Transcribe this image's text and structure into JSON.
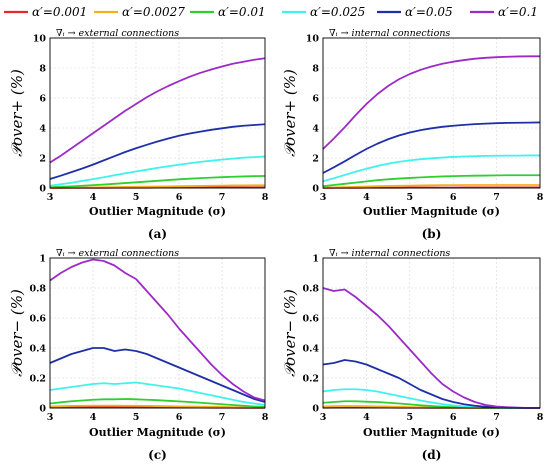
{
  "legend": [
    {
      "label": "α′=0.001",
      "color": "#e8262a"
    },
    {
      "label": "α′=0.0027",
      "color": "#f2b01e"
    },
    {
      "label": "α′=0.01",
      "color": "#2fcf2f"
    },
    {
      "label": "α′=0.025",
      "color": "#3ff2ee"
    },
    {
      "label": "α′=0.05",
      "color": "#1f2fa8"
    },
    {
      "label": "α′=0.1",
      "color": "#9b2bc6"
    }
  ],
  "chart_data": [
    {
      "type": "line",
      "panel_label": "(a)",
      "annotation": "∇ᵢ → external connections",
      "xlabel": "Outlier Magnitude (σ)",
      "ylabel": "𝒫over+ (%)",
      "xlim": [
        3,
        8
      ],
      "ylim": [
        0,
        10
      ],
      "xticks": [
        "3",
        "4",
        "5",
        "6",
        "7",
        "8"
      ],
      "yticks": [
        "0",
        "2",
        "4",
        "6",
        "8",
        "10"
      ],
      "grid": true,
      "x": [
        3,
        3.25,
        3.5,
        3.75,
        4,
        4.25,
        4.5,
        4.75,
        5,
        5.25,
        5.5,
        5.75,
        6,
        6.25,
        6.5,
        6.75,
        7,
        7.25,
        7.5,
        7.75,
        8
      ],
      "series": [
        {
          "name": "α′=0.001",
          "values": [
            0,
            0,
            0.01,
            0.01,
            0.01,
            0.01,
            0.02,
            0.02,
            0.02,
            0.02,
            0.03,
            0.03,
            0.03,
            0.03,
            0.03,
            0.04,
            0.04,
            0.04,
            0.04,
            0.04,
            0.04
          ]
        },
        {
          "name": "α′=0.0027",
          "values": [
            0.01,
            0.02,
            0.03,
            0.03,
            0.04,
            0.05,
            0.06,
            0.07,
            0.08,
            0.09,
            0.1,
            0.11,
            0.12,
            0.13,
            0.14,
            0.15,
            0.16,
            0.17,
            0.17,
            0.18,
            0.18
          ]
        },
        {
          "name": "α′=0.01",
          "values": [
            0.05,
            0.08,
            0.11,
            0.15,
            0.19,
            0.23,
            0.28,
            0.33,
            0.38,
            0.43,
            0.48,
            0.53,
            0.58,
            0.62,
            0.66,
            0.69,
            0.72,
            0.75,
            0.77,
            0.79,
            0.8
          ]
        },
        {
          "name": "α′=0.025",
          "values": [
            0.15,
            0.25,
            0.35,
            0.47,
            0.59,
            0.72,
            0.85,
            0.98,
            1.1,
            1.22,
            1.34,
            1.45,
            1.55,
            1.65,
            1.74,
            1.82,
            1.89,
            1.96,
            2.02,
            2.06,
            2.1
          ]
        },
        {
          "name": "α′=0.05",
          "values": [
            0.6,
            0.82,
            1.06,
            1.3,
            1.56,
            1.84,
            2.12,
            2.4,
            2.65,
            2.88,
            3.1,
            3.3,
            3.48,
            3.63,
            3.76,
            3.88,
            3.98,
            4.08,
            4.15,
            4.2,
            4.25
          ]
        },
        {
          "name": "α′=0.1",
          "values": [
            1.7,
            2.15,
            2.65,
            3.15,
            3.65,
            4.15,
            4.65,
            5.15,
            5.6,
            6.05,
            6.45,
            6.8,
            7.12,
            7.42,
            7.68,
            7.9,
            8.1,
            8.28,
            8.42,
            8.55,
            8.65
          ]
        }
      ]
    },
    {
      "type": "line",
      "panel_label": "(b)",
      "annotation": "∇ᵢ → internal connections",
      "xlabel": "Outlier Magnitude (σ)",
      "ylabel": "𝒫over+ (%)",
      "xlim": [
        3,
        8
      ],
      "ylim": [
        0,
        10
      ],
      "xticks": [
        "3",
        "4",
        "5",
        "6",
        "7",
        "8"
      ],
      "yticks": [
        "0",
        "2",
        "4",
        "6",
        "8",
        "10"
      ],
      "grid": true,
      "x": [
        3,
        3.25,
        3.5,
        3.75,
        4,
        4.25,
        4.5,
        4.75,
        5,
        5.25,
        5.5,
        5.75,
        6,
        6.25,
        6.5,
        6.75,
        7,
        7.25,
        7.5,
        7.75,
        8
      ],
      "series": [
        {
          "name": "α′=0.001",
          "values": [
            0,
            0.01,
            0.01,
            0.01,
            0.02,
            0.02,
            0.02,
            0.02,
            0.03,
            0.03,
            0.03,
            0.03,
            0.03,
            0.04,
            0.04,
            0.04,
            0.04,
            0.04,
            0.04,
            0.04,
            0.04
          ]
        },
        {
          "name": "α′=0.0027",
          "values": [
            0.02,
            0.04,
            0.06,
            0.08,
            0.1,
            0.12,
            0.14,
            0.15,
            0.16,
            0.17,
            0.18,
            0.19,
            0.19,
            0.2,
            0.2,
            0.2,
            0.2,
            0.2,
            0.2,
            0.2,
            0.2
          ]
        },
        {
          "name": "α′=0.01",
          "values": [
            0.12,
            0.2,
            0.28,
            0.36,
            0.44,
            0.52,
            0.58,
            0.63,
            0.67,
            0.71,
            0.74,
            0.77,
            0.79,
            0.81,
            0.82,
            0.83,
            0.84,
            0.85,
            0.85,
            0.85,
            0.85
          ]
        },
        {
          "name": "α′=0.025",
          "values": [
            0.45,
            0.65,
            0.87,
            1.08,
            1.28,
            1.47,
            1.62,
            1.74,
            1.84,
            1.92,
            1.98,
            2.03,
            2.07,
            2.1,
            2.12,
            2.14,
            2.15,
            2.16,
            2.16,
            2.17,
            2.17
          ]
        },
        {
          "name": "α′=0.05",
          "values": [
            1.0,
            1.38,
            1.78,
            2.2,
            2.6,
            2.95,
            3.25,
            3.5,
            3.7,
            3.86,
            3.98,
            4.08,
            4.15,
            4.21,
            4.26,
            4.29,
            4.32,
            4.34,
            4.35,
            4.36,
            4.37
          ]
        },
        {
          "name": "α′=0.1",
          "values": [
            2.6,
            3.3,
            4.05,
            4.85,
            5.6,
            6.25,
            6.8,
            7.25,
            7.6,
            7.88,
            8.1,
            8.28,
            8.42,
            8.53,
            8.62,
            8.68,
            8.72,
            8.75,
            8.77,
            8.78,
            8.78
          ]
        }
      ]
    },
    {
      "type": "line",
      "panel_label": "(c)",
      "annotation": "∇ᵢ → external connections",
      "xlabel": "Outlier Magnitude (σ)",
      "ylabel": "𝒫over− (%)",
      "xlim": [
        3,
        8
      ],
      "ylim": [
        0,
        1
      ],
      "xticks": [
        "3",
        "4",
        "5",
        "6",
        "7",
        "8"
      ],
      "yticks": [
        "0",
        "0.2",
        "0.4",
        "0.6",
        "0.8",
        "1"
      ],
      "grid": true,
      "x": [
        3,
        3.25,
        3.5,
        3.75,
        4,
        4.25,
        4.5,
        4.75,
        5,
        5.25,
        5.5,
        5.75,
        6,
        6.25,
        6.5,
        6.75,
        7,
        7.25,
        7.5,
        7.75,
        8
      ],
      "series": [
        {
          "name": "α′=0.001",
          "values": [
            0.003,
            0.004,
            0.005,
            0.005,
            0.005,
            0.005,
            0.005,
            0.005,
            0.005,
            0.004,
            0.004,
            0.004,
            0.003,
            0.003,
            0.003,
            0.002,
            0.002,
            0.002,
            0.001,
            0.001,
            0.001
          ]
        },
        {
          "name": "α′=0.0027",
          "values": [
            0.01,
            0.012,
            0.014,
            0.015,
            0.016,
            0.016,
            0.016,
            0.015,
            0.015,
            0.014,
            0.013,
            0.012,
            0.011,
            0.01,
            0.009,
            0.008,
            0.007,
            0.006,
            0.005,
            0.004,
            0.003
          ]
        },
        {
          "name": "α′=0.01",
          "values": [
            0.03,
            0.038,
            0.045,
            0.05,
            0.055,
            0.058,
            0.058,
            0.06,
            0.058,
            0.055,
            0.052,
            0.048,
            0.044,
            0.04,
            0.035,
            0.03,
            0.025,
            0.02,
            0.015,
            0.01,
            0.007
          ]
        },
        {
          "name": "α′=0.025",
          "values": [
            0.12,
            0.13,
            0.14,
            0.15,
            0.16,
            0.165,
            0.16,
            0.165,
            0.17,
            0.16,
            0.15,
            0.14,
            0.13,
            0.115,
            0.1,
            0.085,
            0.07,
            0.055,
            0.04,
            0.03,
            0.02
          ]
        },
        {
          "name": "α′=0.05",
          "values": [
            0.3,
            0.33,
            0.36,
            0.38,
            0.4,
            0.4,
            0.38,
            0.39,
            0.38,
            0.36,
            0.33,
            0.3,
            0.27,
            0.24,
            0.21,
            0.18,
            0.15,
            0.12,
            0.09,
            0.06,
            0.04
          ]
        },
        {
          "name": "α′=0.1",
          "values": [
            0.85,
            0.9,
            0.94,
            0.97,
            0.99,
            0.98,
            0.95,
            0.9,
            0.86,
            0.78,
            0.7,
            0.62,
            0.53,
            0.45,
            0.37,
            0.29,
            0.22,
            0.16,
            0.11,
            0.07,
            0.05
          ]
        }
      ]
    },
    {
      "type": "line",
      "panel_label": "(d)",
      "annotation": "∇ᵢ → internal connections",
      "xlabel": "Outlier Magnitude (σ)",
      "ylabel": "𝒫over− (%)",
      "xlim": [
        3,
        8
      ],
      "ylim": [
        0,
        1
      ],
      "xticks": [
        "3",
        "4",
        "5",
        "6",
        "7",
        "8"
      ],
      "yticks": [
        "0",
        "0.2",
        "0.4",
        "0.6",
        "0.8",
        "1"
      ],
      "grid": true,
      "x": [
        3,
        3.25,
        3.5,
        3.75,
        4,
        4.25,
        4.5,
        4.75,
        5,
        5.25,
        5.5,
        5.75,
        6,
        6.25,
        6.5,
        6.75,
        7,
        7.25,
        7.5,
        7.75,
        8
      ],
      "series": [
        {
          "name": "α′=0.001",
          "values": [
            0.002,
            0.003,
            0.003,
            0.003,
            0.003,
            0.003,
            0.003,
            0.002,
            0.002,
            0.002,
            0.001,
            0.001,
            0.001,
            0.001,
            0.0,
            0.0,
            0.0,
            0.0,
            0.0,
            0.0,
            0.0
          ]
        },
        {
          "name": "α′=0.0027",
          "values": [
            0.01,
            0.012,
            0.013,
            0.013,
            0.012,
            0.011,
            0.01,
            0.008,
            0.006,
            0.005,
            0.003,
            0.002,
            0.002,
            0.001,
            0.001,
            0.0,
            0.0,
            0.0,
            0.0,
            0.0,
            0.0
          ]
        },
        {
          "name": "α′=0.01",
          "values": [
            0.035,
            0.04,
            0.045,
            0.045,
            0.042,
            0.04,
            0.035,
            0.03,
            0.024,
            0.018,
            0.013,
            0.009,
            0.006,
            0.004,
            0.002,
            0.001,
            0.0,
            0.0,
            0.0,
            0.0,
            0.0
          ]
        },
        {
          "name": "α′=0.025",
          "values": [
            0.11,
            0.12,
            0.125,
            0.125,
            0.12,
            0.11,
            0.095,
            0.08,
            0.065,
            0.05,
            0.037,
            0.026,
            0.017,
            0.011,
            0.006,
            0.003,
            0.002,
            0.001,
            0.0,
            0.0,
            0.0
          ]
        },
        {
          "name": "α′=0.05",
          "values": [
            0.29,
            0.3,
            0.32,
            0.31,
            0.29,
            0.26,
            0.23,
            0.2,
            0.16,
            0.12,
            0.09,
            0.06,
            0.04,
            0.025,
            0.015,
            0.008,
            0.004,
            0.002,
            0.001,
            0.0,
            0.0
          ]
        },
        {
          "name": "α′=0.1",
          "values": [
            0.8,
            0.78,
            0.79,
            0.74,
            0.68,
            0.62,
            0.55,
            0.47,
            0.39,
            0.31,
            0.23,
            0.16,
            0.11,
            0.07,
            0.04,
            0.02,
            0.01,
            0.005,
            0.002,
            0.0,
            0.0
          ]
        }
      ]
    }
  ]
}
